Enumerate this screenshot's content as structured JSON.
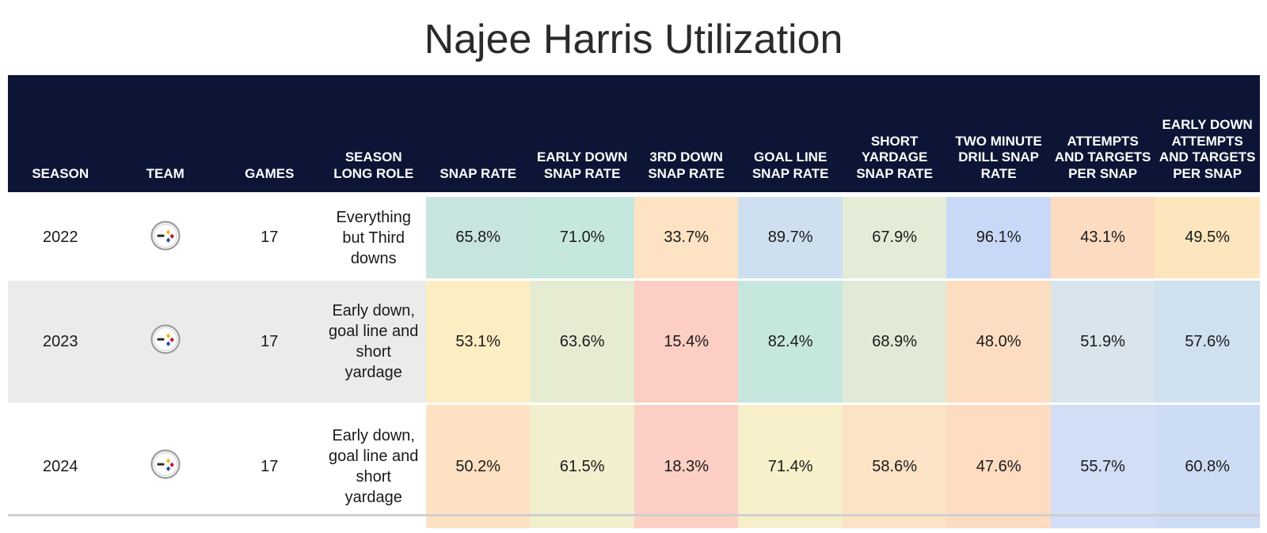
{
  "title": "Najee Harris Utilization",
  "chart_data": {
    "type": "table",
    "title": "Najee Harris Utilization",
    "columns": [
      "SEASON",
      "TEAM",
      "GAMES",
      "SEASON LONG ROLE",
      "SNAP RATE",
      "EARLY DOWN SNAP RATE",
      "3RD DOWN SNAP RATE",
      "GOAL LINE SNAP RATE",
      "SHORT YARDAGE SNAP RATE",
      "TWO MINUTE DRILL SNAP RATE",
      "ATTEMPTS AND TARGETS PER SNAP",
      "EARLY DOWN ATTEMPTS AND TARGETS PER SNAP"
    ],
    "rows": [
      {
        "season": "2022",
        "team_icon": "steelers-logo-icon",
        "games": "17",
        "role": "Everything but Third downs",
        "metrics": [
          "65.8%",
          "71.0%",
          "33.7%",
          "89.7%",
          "67.9%",
          "96.1%",
          "43.1%",
          "49.5%"
        ],
        "colors": [
          "#c8e4df",
          "#c6e7de",
          "#fde2c3",
          "#cee0ef",
          "#e2ecd7",
          "#c8d8f7",
          "#fddbc0",
          "#fde6bd"
        ]
      },
      {
        "season": "2023",
        "team_icon": "steelers-logo-icon",
        "games": "17",
        "role": "Early down, goal line and short yardage",
        "metrics": [
          "53.1%",
          "63.6%",
          "15.4%",
          "82.4%",
          "68.9%",
          "48.0%",
          "51.9%",
          "57.6%"
        ],
        "colors": [
          "#fdedc2",
          "#e6ecd2",
          "#fdcec3",
          "#c6e7de",
          "#e0ead6",
          "#fdddc2",
          "#d8e5ec",
          "#cfe0ef"
        ]
      },
      {
        "season": "2024",
        "team_icon": "steelers-logo-icon",
        "games": "17",
        "role": "Early down, goal line and short yardage",
        "metrics": [
          "50.2%",
          "61.5%",
          "18.3%",
          "71.4%",
          "58.6%",
          "47.6%",
          "55.7%",
          "60.8%"
        ],
        "colors": [
          "#fde1c2",
          "#f2efce",
          "#fdcfc5",
          "#f7f0cb",
          "#fde3c5",
          "#fddcc2",
          "#d1def5",
          "#cddcf5"
        ]
      }
    ]
  }
}
